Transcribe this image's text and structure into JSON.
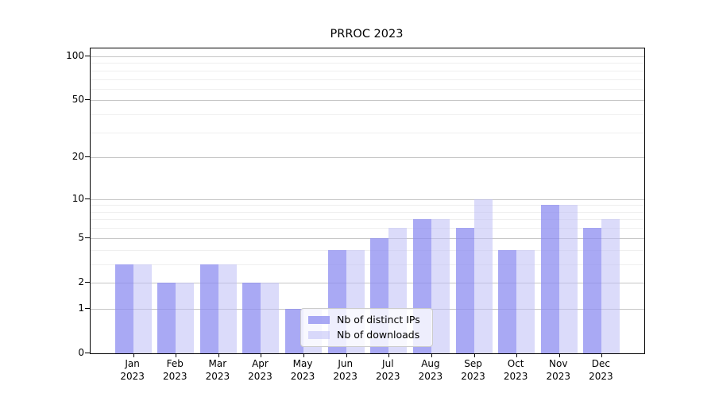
{
  "title": "PRROC 2023",
  "chart_data": {
    "type": "bar",
    "title": "PRROC 2023",
    "categories": [
      "Jan",
      "Feb",
      "Mar",
      "Apr",
      "May",
      "Jun",
      "Jul",
      "Aug",
      "Sep",
      "Oct",
      "Nov",
      "Dec"
    ],
    "year": "2023",
    "series": [
      {
        "name": "Nb of distinct IPs",
        "color": "rgba(140,140,240,0.75)",
        "values": [
          3,
          2,
          3,
          2,
          1,
          4,
          5,
          7,
          6,
          4,
          9,
          6
        ]
      },
      {
        "name": "Nb of downloads",
        "color": "rgba(190,190,245,0.55)",
        "values": [
          3,
          2,
          3,
          2,
          1,
          4,
          6,
          7,
          10,
          4,
          9,
          7
        ]
      }
    ],
    "xlabel": "",
    "ylabel": "",
    "y_axis": {
      "scale": "log1p",
      "min": 0,
      "max": 100,
      "major_ticks": [
        0,
        1,
        2,
        5,
        10,
        20,
        50,
        100
      ],
      "minor_gridlines": [
        3,
        4,
        6,
        7,
        8,
        9,
        30,
        40,
        60,
        70,
        80,
        90
      ]
    },
    "grid": true,
    "legend_position": "bottom-center-left overlapping plot"
  },
  "colors": {
    "bar_distinct_ips": "rgba(140,140,240,0.75)",
    "bar_downloads": "rgba(190,190,245,0.55)",
    "grid_major": "#c6c6c6",
    "grid_minor": "#efefef",
    "axis_border": "#000000",
    "legend_border": "#cccccc",
    "legend_background": "rgba(255,255,255,0.8)"
  }
}
